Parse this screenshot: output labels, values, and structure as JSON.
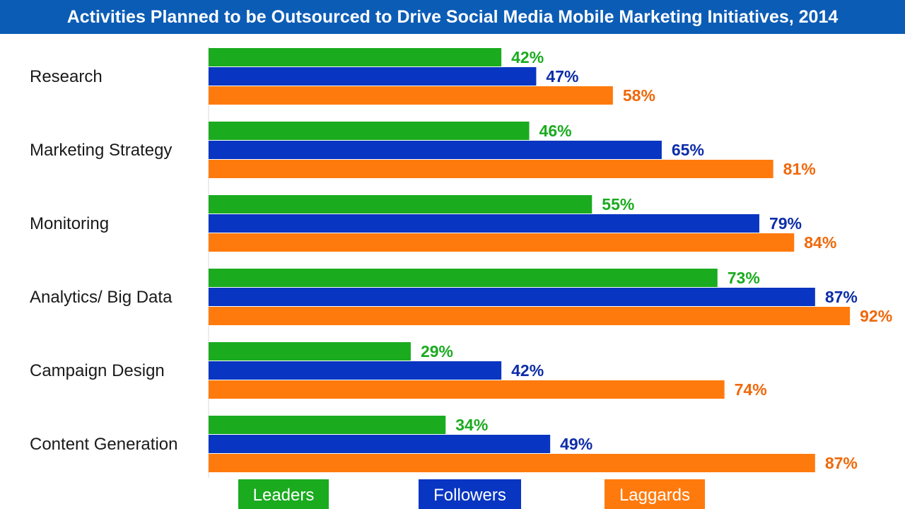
{
  "chart_data": {
    "type": "bar",
    "orientation": "horizontal",
    "title": "Activities Planned to be Outsourced to Drive Social Media Mobile Marketing Initiatives, 2014",
    "categories": [
      "Research",
      "Marketing Strategy",
      "Monitoring",
      "Analytics/ Big Data",
      "Campaign Design",
      "Content Generation"
    ],
    "series": [
      {
        "name": "Leaders",
        "color": "#1aab1f",
        "label_color": "#1aab1f",
        "values": [
          42,
          46,
          55,
          73,
          29,
          34
        ]
      },
      {
        "name": "Followers",
        "color": "#0835c1",
        "label_color": "#0d2da8",
        "values": [
          47,
          65,
          79,
          87,
          42,
          49
        ]
      },
      {
        "name": "Laggards",
        "color": "#ff7a0d",
        "label_color": "#f0680a",
        "values": [
          58,
          81,
          84,
          92,
          74,
          87
        ]
      }
    ],
    "value_suffix": "%",
    "xlim": [
      0,
      100
    ],
    "legend_position": "bottom",
    "grid": false
  },
  "colors": {
    "title_bar": "#0b5cb5",
    "axis_line": "#d9d9d9"
  }
}
